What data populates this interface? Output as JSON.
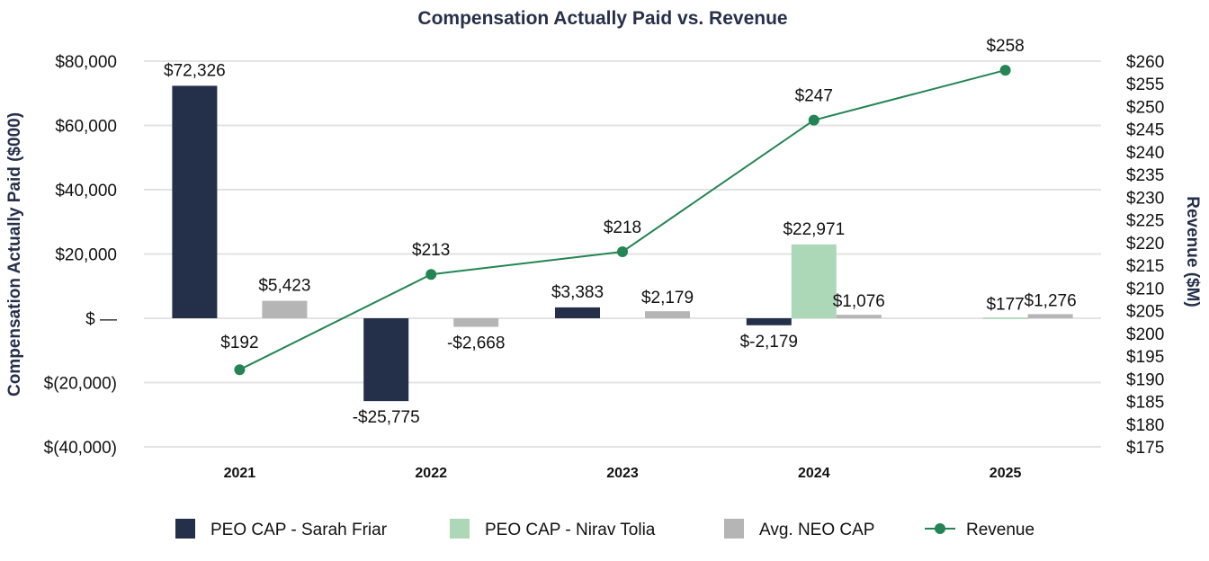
{
  "chart_data": {
    "type": "bar",
    "title": "Compensation Actually Paid vs. Revenue",
    "ylabel": "Compensation Actually Paid ($000)",
    "y2label": "Revenue ($M)",
    "categories": [
      "2021",
      "2022",
      "2023",
      "2024",
      "2025"
    ],
    "ylim": [
      -40000,
      80000
    ],
    "y2lim": [
      175,
      260
    ],
    "left_ticks": [
      {
        "value": 80000,
        "label": "$80,000"
      },
      {
        "value": 60000,
        "label": "$60,000"
      },
      {
        "value": 40000,
        "label": "$40,000"
      },
      {
        "value": 20000,
        "label": "$20,000"
      },
      {
        "value": 0,
        "label": "$ —"
      },
      {
        "value": -20000,
        "label": "$(20,000)"
      },
      {
        "value": -40000,
        "label": "$(40,000)"
      }
    ],
    "right_ticks": [
      {
        "value": 260,
        "label": "$260"
      },
      {
        "value": 255,
        "label": "$255"
      },
      {
        "value": 250,
        "label": "$250"
      },
      {
        "value": 245,
        "label": "$245"
      },
      {
        "value": 240,
        "label": "$240"
      },
      {
        "value": 235,
        "label": "$235"
      },
      {
        "value": 230,
        "label": "$230"
      },
      {
        "value": 225,
        "label": "$225"
      },
      {
        "value": 220,
        "label": "$220"
      },
      {
        "value": 215,
        "label": "$215"
      },
      {
        "value": 210,
        "label": "$210"
      },
      {
        "value": 205,
        "label": "$205"
      },
      {
        "value": 200,
        "label": "$200"
      },
      {
        "value": 195,
        "label": "$195"
      },
      {
        "value": 190,
        "label": "$190"
      },
      {
        "value": 185,
        "label": "$185"
      },
      {
        "value": 180,
        "label": "$180"
      },
      {
        "value": 175,
        "label": "$175"
      }
    ],
    "grid": true,
    "legend_position": "bottom",
    "series": [
      {
        "name": "PEO CAP - Sarah Friar",
        "kind": "bar",
        "color": "#243049",
        "values": [
          72326,
          -25775,
          3383,
          -2179,
          null
        ],
        "labels": [
          "$72,326",
          "-$25,775",
          "$3,383",
          "$-2,179",
          ""
        ]
      },
      {
        "name": "PEO CAP - Nirav Tolia",
        "kind": "bar",
        "color": "#acd8b7",
        "values": [
          null,
          null,
          null,
          22971,
          177
        ],
        "labels": [
          "",
          "",
          "",
          "$22,971",
          "$177"
        ]
      },
      {
        "name": "Avg. NEO CAP",
        "kind": "bar",
        "color": "#b5b5b5",
        "values": [
          5423,
          -2668,
          2179,
          1076,
          1276
        ],
        "labels": [
          "$5,423",
          "-$2,668",
          "$2,179",
          "$1,076",
          "$1,276"
        ]
      },
      {
        "name": "Revenue",
        "kind": "line",
        "axis": "right",
        "color": "#238553",
        "values": [
          192,
          213,
          218,
          247,
          258
        ],
        "labels": [
          "$192",
          "$213",
          "$218",
          "$247",
          "$258"
        ]
      }
    ]
  }
}
